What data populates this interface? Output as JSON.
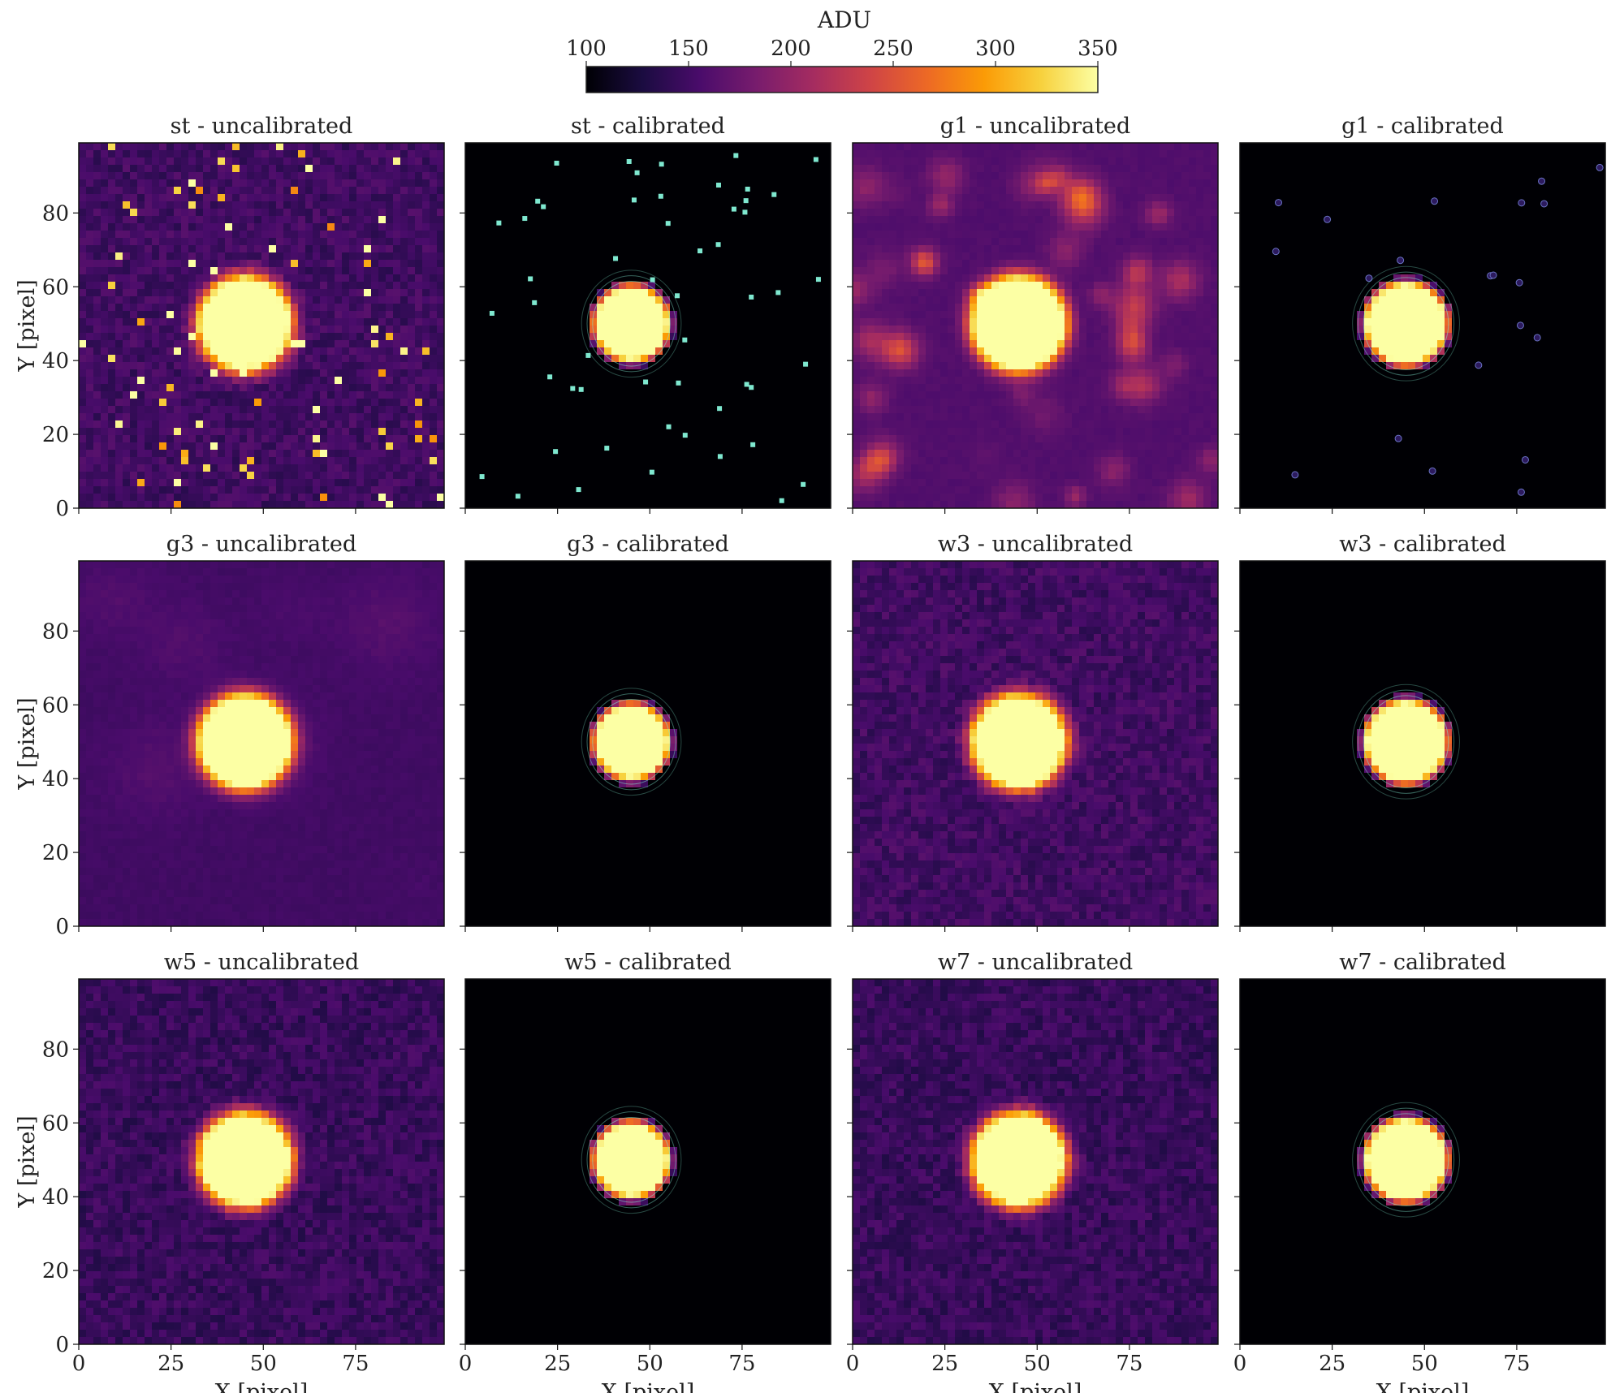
{
  "colorbar": {
    "label": "ADU",
    "range": [
      100,
      350
    ],
    "ticks": [
      100,
      150,
      200,
      250,
      300,
      350
    ],
    "colormap": "inferno",
    "stops": [
      "#000004",
      "#1b0c41",
      "#4a0c6b",
      "#781c6d",
      "#a52c60",
      "#cf4446",
      "#ed6925",
      "#fb9b06",
      "#f7d13d",
      "#fcffa4"
    ]
  },
  "contour_color": "#7fe8d0",
  "chart_data": [
    {
      "type": "heatmap",
      "title": "st - uncalibrated",
      "row": 0,
      "col": 0,
      "calibrated": false,
      "noise": "salt-pepper",
      "background_adu": 150,
      "source_center": [
        45,
        50
      ],
      "source_radius": 10,
      "xlabel": "",
      "ylabel": "Y [pixel]",
      "xlim": [
        0,
        99
      ],
      "ylim": [
        0,
        99
      ],
      "xticks": [
        0,
        25,
        50,
        75
      ],
      "yticks": [
        0,
        20,
        40,
        60,
        80
      ],
      "show_xticklabels": false,
      "show_yticklabels": true,
      "contours": false
    },
    {
      "type": "heatmap",
      "title": "st - calibrated",
      "row": 0,
      "col": 1,
      "calibrated": true,
      "noise": "hot-pixels",
      "background_adu": 100,
      "source_center": [
        45,
        50
      ],
      "source_radius": 9,
      "xlabel": "",
      "ylabel": "",
      "xlim": [
        0,
        99
      ],
      "ylim": [
        0,
        99
      ],
      "xticks": [
        0,
        25,
        50,
        75
      ],
      "yticks": [
        0,
        20,
        40,
        60,
        80
      ],
      "show_xticklabels": false,
      "show_yticklabels": false,
      "contours": true
    },
    {
      "type": "heatmap",
      "title": "g1 - uncalibrated",
      "row": 0,
      "col": 2,
      "calibrated": false,
      "noise": "blobs",
      "background_adu": 160,
      "source_center": [
        45,
        50
      ],
      "source_radius": 10,
      "xlabel": "",
      "ylabel": "",
      "xlim": [
        0,
        99
      ],
      "ylim": [
        0,
        99
      ],
      "xticks": [
        0,
        25,
        50,
        75
      ],
      "yticks": [
        0,
        20,
        40,
        60,
        80
      ],
      "show_xticklabels": false,
      "show_yticklabels": false,
      "contours": false
    },
    {
      "type": "heatmap",
      "title": "g1 - calibrated",
      "row": 0,
      "col": 3,
      "calibrated": true,
      "noise": "sparse",
      "background_adu": 100,
      "source_center": [
        45,
        50
      ],
      "source_radius": 10,
      "xlabel": "",
      "ylabel": "",
      "xlim": [
        0,
        99
      ],
      "ylim": [
        0,
        99
      ],
      "xticks": [
        0,
        25,
        50,
        75
      ],
      "yticks": [
        0,
        20,
        40,
        60,
        80
      ],
      "show_xticklabels": false,
      "show_yticklabels": false,
      "contours": true
    },
    {
      "type": "heatmap",
      "title": "g3 - uncalibrated",
      "row": 1,
      "col": 0,
      "calibrated": false,
      "noise": "smooth",
      "background_adu": 150,
      "source_center": [
        45,
        50
      ],
      "source_radius": 10,
      "xlabel": "",
      "ylabel": "Y [pixel]",
      "xlim": [
        0,
        99
      ],
      "ylim": [
        0,
        99
      ],
      "xticks": [
        0,
        25,
        50,
        75
      ],
      "yticks": [
        0,
        20,
        40,
        60,
        80
      ],
      "show_xticklabels": false,
      "show_yticklabels": true,
      "contours": false
    },
    {
      "type": "heatmap",
      "title": "g3 - calibrated",
      "row": 1,
      "col": 1,
      "calibrated": true,
      "noise": "none",
      "background_adu": 100,
      "source_center": [
        45,
        50
      ],
      "source_radius": 9,
      "xlabel": "",
      "ylabel": "",
      "xlim": [
        0,
        99
      ],
      "ylim": [
        0,
        99
      ],
      "xticks": [
        0,
        25,
        50,
        75
      ],
      "yticks": [
        0,
        20,
        40,
        60,
        80
      ],
      "show_xticklabels": false,
      "show_yticklabels": false,
      "contours": true
    },
    {
      "type": "heatmap",
      "title": "w3 - uncalibrated",
      "row": 1,
      "col": 2,
      "calibrated": false,
      "noise": "pixel",
      "background_adu": 150,
      "source_center": [
        45,
        50
      ],
      "source_radius": 10,
      "xlabel": "",
      "ylabel": "",
      "xlim": [
        0,
        99
      ],
      "ylim": [
        0,
        99
      ],
      "xticks": [
        0,
        25,
        50,
        75
      ],
      "yticks": [
        0,
        20,
        40,
        60,
        80
      ],
      "show_xticklabels": false,
      "show_yticklabels": false,
      "contours": false
    },
    {
      "type": "heatmap",
      "title": "w3 - calibrated",
      "row": 1,
      "col": 3,
      "calibrated": true,
      "noise": "none",
      "background_adu": 100,
      "source_center": [
        45,
        50
      ],
      "source_radius": 10,
      "xlabel": "",
      "ylabel": "",
      "xlim": [
        0,
        99
      ],
      "ylim": [
        0,
        99
      ],
      "xticks": [
        0,
        25,
        50,
        75
      ],
      "yticks": [
        0,
        20,
        40,
        60,
        80
      ],
      "show_xticklabels": false,
      "show_yticklabels": false,
      "contours": true
    },
    {
      "type": "heatmap",
      "title": "w5 - uncalibrated",
      "row": 2,
      "col": 0,
      "calibrated": false,
      "noise": "pixel",
      "background_adu": 145,
      "source_center": [
        45,
        50
      ],
      "source_radius": 10,
      "xlabel": "X [pixel]",
      "ylabel": "Y [pixel]",
      "xlim": [
        0,
        99
      ],
      "ylim": [
        0,
        99
      ],
      "xticks": [
        0,
        25,
        50,
        75
      ],
      "yticks": [
        0,
        20,
        40,
        60,
        80
      ],
      "show_xticklabels": true,
      "show_yticklabels": true,
      "contours": false
    },
    {
      "type": "heatmap",
      "title": "w5 - calibrated",
      "row": 2,
      "col": 1,
      "calibrated": true,
      "noise": "none",
      "background_adu": 100,
      "source_center": [
        45,
        50
      ],
      "source_radius": 9,
      "xlabel": "X [pixel]",
      "ylabel": "",
      "xlim": [
        0,
        99
      ],
      "ylim": [
        0,
        99
      ],
      "xticks": [
        0,
        25,
        50,
        75
      ],
      "yticks": [
        0,
        20,
        40,
        60,
        80
      ],
      "show_xticklabels": true,
      "show_yticklabels": false,
      "contours": true
    },
    {
      "type": "heatmap",
      "title": "w7 - uncalibrated",
      "row": 2,
      "col": 2,
      "calibrated": false,
      "noise": "pixel",
      "background_adu": 145,
      "source_center": [
        45,
        50
      ],
      "source_radius": 10,
      "xlabel": "X [pixel]",
      "ylabel": "",
      "xlim": [
        0,
        99
      ],
      "ylim": [
        0,
        99
      ],
      "xticks": [
        0,
        25,
        50,
        75
      ],
      "yticks": [
        0,
        20,
        40,
        60,
        80
      ],
      "show_xticklabels": true,
      "show_yticklabels": false,
      "contours": false
    },
    {
      "type": "heatmap",
      "title": "w7 - calibrated",
      "row": 2,
      "col": 3,
      "calibrated": true,
      "noise": "none",
      "background_adu": 100,
      "source_center": [
        45,
        50
      ],
      "source_radius": 10,
      "xlabel": "X [pixel]",
      "ylabel": "",
      "xlim": [
        0,
        99
      ],
      "ylim": [
        0,
        99
      ],
      "xticks": [
        0,
        25,
        50,
        75
      ],
      "yticks": [
        0,
        20,
        40,
        60,
        80
      ],
      "show_xticklabels": true,
      "show_yticklabels": false,
      "contours": true
    }
  ]
}
